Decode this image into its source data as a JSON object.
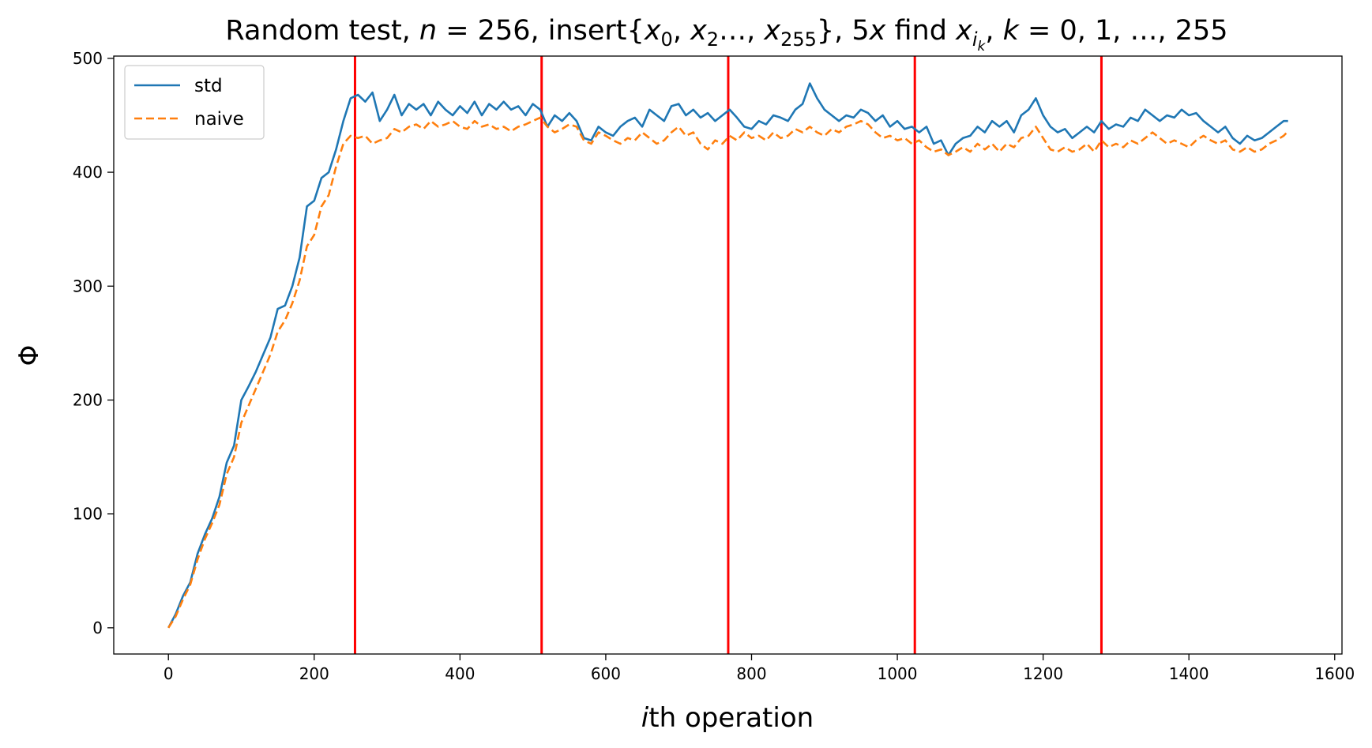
{
  "chart_data": {
    "type": "line",
    "title": {
      "prefix": "Random test, ",
      "n_var": "n",
      "n_eq": " = 256, insert{",
      "x0_base": "x",
      "x0_sub": "0",
      "sep1": ", ",
      "x2_base": "x",
      "x2_sub": "2",
      "sep2": "…, ",
      "x255_base": "x",
      "x255_sub": "255",
      "mid": "}, 5",
      "x_var": "x",
      "find": " find ",
      "xi_base": "x",
      "xi_sub": "i",
      "xi_subsub": "k",
      "sep3": ", ",
      "k_var": "k",
      "tail": " = 0, 1, …, 255"
    },
    "xlabel": {
      "var": "i",
      "text": "th operation"
    },
    "ylabel": "Φ",
    "xlim": [
      -75,
      1610
    ],
    "ylim": [
      -23,
      502
    ],
    "xticks": [
      0,
      200,
      400,
      600,
      800,
      1000,
      1200,
      1400,
      1600
    ],
    "yticks": [
      0,
      100,
      200,
      300,
      400,
      500
    ],
    "vlines": [
      256,
      512,
      768,
      1024,
      1280
    ],
    "vline_color": "#ff0000",
    "legend_position": "top-left",
    "series": [
      {
        "name": "std",
        "color": "#1f77b4",
        "style": "solid",
        "points": [
          [
            0,
            0
          ],
          [
            10,
            12
          ],
          [
            20,
            28
          ],
          [
            30,
            40
          ],
          [
            40,
            65
          ],
          [
            50,
            82
          ],
          [
            60,
            96
          ],
          [
            70,
            115
          ],
          [
            80,
            145
          ],
          [
            90,
            160
          ],
          [
            100,
            200
          ],
          [
            110,
            212
          ],
          [
            120,
            225
          ],
          [
            130,
            240
          ],
          [
            140,
            255
          ],
          [
            150,
            280
          ],
          [
            160,
            283
          ],
          [
            170,
            300
          ],
          [
            180,
            325
          ],
          [
            190,
            370
          ],
          [
            200,
            375
          ],
          [
            210,
            395
          ],
          [
            220,
            400
          ],
          [
            230,
            420
          ],
          [
            240,
            445
          ],
          [
            250,
            465
          ],
          [
            260,
            468
          ],
          [
            270,
            462
          ],
          [
            280,
            470
          ],
          [
            290,
            445
          ],
          [
            300,
            455
          ],
          [
            310,
            468
          ],
          [
            320,
            450
          ],
          [
            330,
            460
          ],
          [
            340,
            455
          ],
          [
            350,
            460
          ],
          [
            360,
            450
          ],
          [
            370,
            462
          ],
          [
            380,
            455
          ],
          [
            390,
            450
          ],
          [
            400,
            458
          ],
          [
            410,
            452
          ],
          [
            420,
            462
          ],
          [
            430,
            450
          ],
          [
            440,
            460
          ],
          [
            450,
            455
          ],
          [
            460,
            462
          ],
          [
            470,
            455
          ],
          [
            480,
            458
          ],
          [
            490,
            450
          ],
          [
            500,
            460
          ],
          [
            510,
            455
          ],
          [
            520,
            440
          ],
          [
            530,
            450
          ],
          [
            540,
            445
          ],
          [
            550,
            452
          ],
          [
            560,
            445
          ],
          [
            570,
            430
          ],
          [
            580,
            428
          ],
          [
            590,
            440
          ],
          [
            600,
            435
          ],
          [
            610,
            432
          ],
          [
            620,
            440
          ],
          [
            630,
            445
          ],
          [
            640,
            448
          ],
          [
            650,
            440
          ],
          [
            660,
            455
          ],
          [
            670,
            450
          ],
          [
            680,
            445
          ],
          [
            690,
            458
          ],
          [
            700,
            460
          ],
          [
            710,
            450
          ],
          [
            720,
            455
          ],
          [
            730,
            448
          ],
          [
            740,
            452
          ],
          [
            750,
            445
          ],
          [
            760,
            450
          ],
          [
            770,
            455
          ],
          [
            780,
            448
          ],
          [
            790,
            440
          ],
          [
            800,
            438
          ],
          [
            810,
            445
          ],
          [
            820,
            442
          ],
          [
            830,
            450
          ],
          [
            840,
            448
          ],
          [
            850,
            445
          ],
          [
            860,
            455
          ],
          [
            870,
            460
          ],
          [
            880,
            478
          ],
          [
            890,
            465
          ],
          [
            900,
            455
          ],
          [
            910,
            450
          ],
          [
            920,
            445
          ],
          [
            930,
            450
          ],
          [
            940,
            448
          ],
          [
            950,
            455
          ],
          [
            960,
            452
          ],
          [
            970,
            445
          ],
          [
            980,
            450
          ],
          [
            990,
            440
          ],
          [
            1000,
            445
          ],
          [
            1010,
            438
          ],
          [
            1020,
            440
          ],
          [
            1030,
            435
          ],
          [
            1040,
            440
          ],
          [
            1050,
            425
          ],
          [
            1060,
            428
          ],
          [
            1070,
            415
          ],
          [
            1080,
            425
          ],
          [
            1090,
            430
          ],
          [
            1100,
            432
          ],
          [
            1110,
            440
          ],
          [
            1120,
            435
          ],
          [
            1130,
            445
          ],
          [
            1140,
            440
          ],
          [
            1150,
            445
          ],
          [
            1160,
            435
          ],
          [
            1170,
            450
          ],
          [
            1180,
            455
          ],
          [
            1190,
            465
          ],
          [
            1200,
            450
          ],
          [
            1210,
            440
          ],
          [
            1220,
            435
          ],
          [
            1230,
            438
          ],
          [
            1240,
            430
          ],
          [
            1250,
            435
          ],
          [
            1260,
            440
          ],
          [
            1270,
            435
          ],
          [
            1280,
            445
          ],
          [
            1290,
            438
          ],
          [
            1300,
            442
          ],
          [
            1310,
            440
          ],
          [
            1320,
            448
          ],
          [
            1330,
            445
          ],
          [
            1340,
            455
          ],
          [
            1350,
            450
          ],
          [
            1360,
            445
          ],
          [
            1370,
            450
          ],
          [
            1380,
            448
          ],
          [
            1390,
            455
          ],
          [
            1400,
            450
          ],
          [
            1410,
            452
          ],
          [
            1420,
            445
          ],
          [
            1430,
            440
          ],
          [
            1440,
            435
          ],
          [
            1450,
            440
          ],
          [
            1460,
            430
          ],
          [
            1470,
            425
          ],
          [
            1480,
            432
          ],
          [
            1490,
            428
          ],
          [
            1500,
            430
          ],
          [
            1510,
            435
          ],
          [
            1520,
            440
          ],
          [
            1530,
            445
          ],
          [
            1536,
            445
          ]
        ]
      },
      {
        "name": "naive",
        "color": "#ff7f0e",
        "style": "dashed",
        "points": [
          [
            0,
            0
          ],
          [
            10,
            10
          ],
          [
            20,
            25
          ],
          [
            30,
            38
          ],
          [
            40,
            60
          ],
          [
            50,
            78
          ],
          [
            60,
            92
          ],
          [
            70,
            108
          ],
          [
            80,
            135
          ],
          [
            90,
            150
          ],
          [
            100,
            180
          ],
          [
            110,
            195
          ],
          [
            120,
            210
          ],
          [
            130,
            225
          ],
          [
            140,
            240
          ],
          [
            150,
            260
          ],
          [
            160,
            270
          ],
          [
            170,
            285
          ],
          [
            180,
            305
          ],
          [
            190,
            335
          ],
          [
            200,
            345
          ],
          [
            210,
            370
          ],
          [
            220,
            380
          ],
          [
            230,
            405
          ],
          [
            240,
            425
          ],
          [
            250,
            432
          ],
          [
            260,
            430
          ],
          [
            270,
            432
          ],
          [
            280,
            425
          ],
          [
            290,
            428
          ],
          [
            300,
            430
          ],
          [
            310,
            438
          ],
          [
            320,
            435
          ],
          [
            330,
            440
          ],
          [
            340,
            442
          ],
          [
            350,
            438
          ],
          [
            360,
            445
          ],
          [
            370,
            440
          ],
          [
            380,
            442
          ],
          [
            390,
            445
          ],
          [
            400,
            440
          ],
          [
            410,
            438
          ],
          [
            420,
            445
          ],
          [
            430,
            440
          ],
          [
            440,
            442
          ],
          [
            450,
            438
          ],
          [
            460,
            440
          ],
          [
            470,
            436
          ],
          [
            480,
            440
          ],
          [
            490,
            442
          ],
          [
            500,
            445
          ],
          [
            510,
            448
          ],
          [
            520,
            440
          ],
          [
            530,
            435
          ],
          [
            540,
            438
          ],
          [
            550,
            442
          ],
          [
            560,
            440
          ],
          [
            570,
            428
          ],
          [
            580,
            425
          ],
          [
            590,
            435
          ],
          [
            600,
            432
          ],
          [
            610,
            428
          ],
          [
            620,
            425
          ],
          [
            630,
            430
          ],
          [
            640,
            428
          ],
          [
            650,
            435
          ],
          [
            660,
            430
          ],
          [
            670,
            425
          ],
          [
            680,
            428
          ],
          [
            690,
            435
          ],
          [
            700,
            440
          ],
          [
            710,
            432
          ],
          [
            720,
            435
          ],
          [
            730,
            425
          ],
          [
            740,
            420
          ],
          [
            750,
            428
          ],
          [
            760,
            425
          ],
          [
            770,
            432
          ],
          [
            780,
            428
          ],
          [
            790,
            435
          ],
          [
            800,
            430
          ],
          [
            810,
            432
          ],
          [
            820,
            428
          ],
          [
            830,
            435
          ],
          [
            840,
            430
          ],
          [
            850,
            432
          ],
          [
            860,
            438
          ],
          [
            870,
            435
          ],
          [
            880,
            440
          ],
          [
            890,
            435
          ],
          [
            900,
            432
          ],
          [
            910,
            438
          ],
          [
            920,
            435
          ],
          [
            930,
            440
          ],
          [
            940,
            442
          ],
          [
            950,
            445
          ],
          [
            960,
            442
          ],
          [
            970,
            435
          ],
          [
            980,
            430
          ],
          [
            990,
            432
          ],
          [
            1000,
            428
          ],
          [
            1010,
            430
          ],
          [
            1020,
            425
          ],
          [
            1030,
            428
          ],
          [
            1040,
            422
          ],
          [
            1050,
            418
          ],
          [
            1060,
            420
          ],
          [
            1070,
            415
          ],
          [
            1080,
            418
          ],
          [
            1090,
            422
          ],
          [
            1100,
            418
          ],
          [
            1110,
            425
          ],
          [
            1120,
            420
          ],
          [
            1130,
            425
          ],
          [
            1140,
            418
          ],
          [
            1150,
            425
          ],
          [
            1160,
            422
          ],
          [
            1170,
            430
          ],
          [
            1180,
            432
          ],
          [
            1190,
            440
          ],
          [
            1200,
            430
          ],
          [
            1210,
            420
          ],
          [
            1220,
            418
          ],
          [
            1230,
            422
          ],
          [
            1240,
            418
          ],
          [
            1250,
            420
          ],
          [
            1260,
            425
          ],
          [
            1270,
            418
          ],
          [
            1280,
            428
          ],
          [
            1290,
            422
          ],
          [
            1300,
            425
          ],
          [
            1310,
            422
          ],
          [
            1320,
            428
          ],
          [
            1330,
            425
          ],
          [
            1340,
            430
          ],
          [
            1350,
            435
          ],
          [
            1360,
            430
          ],
          [
            1370,
            425
          ],
          [
            1380,
            428
          ],
          [
            1390,
            425
          ],
          [
            1400,
            422
          ],
          [
            1410,
            428
          ],
          [
            1420,
            432
          ],
          [
            1430,
            428
          ],
          [
            1440,
            425
          ],
          [
            1450,
            428
          ],
          [
            1460,
            420
          ],
          [
            1470,
            418
          ],
          [
            1480,
            422
          ],
          [
            1490,
            418
          ],
          [
            1500,
            420
          ],
          [
            1510,
            425
          ],
          [
            1520,
            428
          ],
          [
            1530,
            432
          ],
          [
            1536,
            436
          ]
        ]
      }
    ]
  }
}
